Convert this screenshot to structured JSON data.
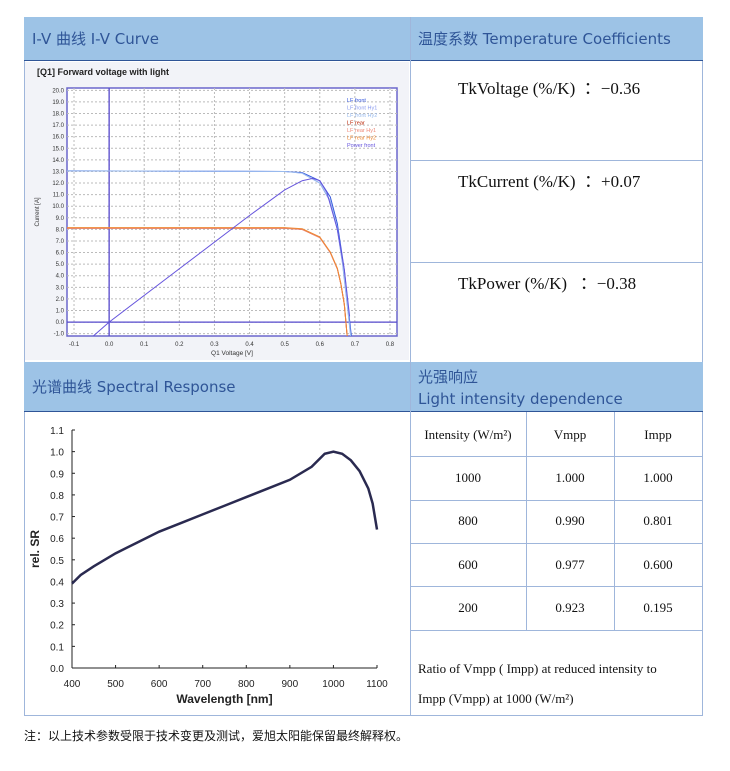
{
  "headers": {
    "iv": "I-V 曲线      I-V Curve",
    "temp": "温度系数 Temperature Coefficients",
    "spectral": "光谱曲线  Spectral Response",
    "light_cn": "光强响应",
    "light_en": "Light intensity dependence"
  },
  "temperature": [
    {
      "label": "TkVoltage (%/K)",
      "value": "：−0.36"
    },
    {
      "label": "TkCurrent (%/K)",
      "value": "：+0.07"
    },
    {
      "label": "TkPower (%/K)",
      "value": "：−0.38"
    }
  ],
  "light_table": {
    "columns": [
      "Intensity (W/m²)",
      "Vmpp",
      "Impp"
    ],
    "rows": [
      [
        "1000",
        "1.000",
        "1.000"
      ],
      [
        "800",
        "0.990",
        "0.801"
      ],
      [
        "600",
        "0.977",
        "0.600"
      ],
      [
        "200",
        "0.923",
        "0.195"
      ]
    ],
    "note_line1": "Ratio of Vmpp ( Impp) at reduced intensity to",
    "note_line2": "Impp (Vmpp) at 1000 (W/m²)"
  },
  "footnote": "注：以上技术参数受限于技术变更及测试，爱旭太阳能保留最终解释权。",
  "chart_data": [
    {
      "type": "line",
      "title": "[Q1] Forward voltage with light",
      "xlabel": "Q1 Voltage [V]",
      "ylabel": "Current [A]",
      "xlim": [
        -0.12,
        0.82
      ],
      "ylim": [
        -1.2,
        20.2
      ],
      "xticks": [
        "-0.1",
        "0.0",
        "0.1",
        "0.2",
        "0.3",
        "0.4",
        "0.5",
        "0.6",
        "0.7",
        "0.8"
      ],
      "yticks": [
        "20.0",
        "19.0",
        "18.0",
        "17.0",
        "16.0",
        "15.0",
        "14.0",
        "13.0",
        "12.0",
        "11.0",
        "10.0",
        "9.0",
        "8.0",
        "7.0",
        "6.0",
        "5.0",
        "4.0",
        "3.0",
        "2.0",
        "1.0",
        "0.0",
        "-1.0"
      ],
      "legend_placement": "top-right",
      "series": [
        {
          "name": "LF front",
          "color": "#3355dd",
          "x": [
            -0.12,
            0.5,
            0.55,
            0.6,
            0.63,
            0.65,
            0.67,
            0.68,
            0.69
          ],
          "y": [
            13.05,
            13.0,
            12.9,
            12.2,
            10.8,
            8.5,
            4.5,
            1.5,
            -1.2
          ]
        },
        {
          "name": "LF front Hy1",
          "color": "#8899ee",
          "x": [
            -0.12,
            0.5,
            0.55,
            0.6,
            0.63,
            0.65,
            0.665,
            0.68,
            0.688
          ],
          "y": [
            13.05,
            13.0,
            12.85,
            12.0,
            10.4,
            8.0,
            5.0,
            1.0,
            -1.2
          ]
        },
        {
          "name": "LF front Hy2",
          "color": "#99bbee",
          "x": [
            -0.12,
            0.5,
            0.55,
            0.6,
            0.63,
            0.65,
            0.665,
            0.68,
            0.688
          ],
          "y": [
            13.05,
            13.0,
            12.85,
            12.0,
            10.5,
            8.1,
            5.1,
            1.1,
            -1.2
          ]
        },
        {
          "name": "LF rear",
          "color": "#bb2200",
          "x": [
            -0.12,
            0.5,
            0.55,
            0.6,
            0.63,
            0.65,
            0.66,
            0.67,
            0.678
          ],
          "y": [
            8.1,
            8.1,
            8.0,
            7.3,
            6.0,
            4.6,
            3.3,
            1.5,
            -1.2
          ]
        },
        {
          "name": "LF rear Hy1",
          "color": "#ee8877",
          "x": [
            -0.12,
            0.5,
            0.55,
            0.6,
            0.63,
            0.65,
            0.66,
            0.67,
            0.678
          ],
          "y": [
            8.1,
            8.1,
            8.0,
            7.3,
            6.0,
            4.6,
            3.3,
            1.5,
            -1.2
          ]
        },
        {
          "name": "LF rear Hy2",
          "color": "#ee8833",
          "x": [
            -0.12,
            0.5,
            0.55,
            0.6,
            0.63,
            0.65,
            0.66,
            0.67,
            0.678
          ],
          "y": [
            8.15,
            8.15,
            8.05,
            7.35,
            6.05,
            4.65,
            3.35,
            1.55,
            -1.2
          ]
        },
        {
          "name": "Power front",
          "color": "#6655dd",
          "x": [
            -0.045,
            0.0,
            0.2,
            0.4,
            0.5,
            0.55,
            0.58,
            0.6,
            0.62,
            0.65,
            0.67,
            0.685
          ],
          "y": [
            -1.2,
            0.0,
            4.6,
            9.2,
            11.4,
            12.2,
            12.4,
            12.2,
            11.2,
            8.0,
            4.5,
            0.5
          ]
        }
      ]
    },
    {
      "type": "line",
      "title": "",
      "xlabel": "Wavelength [nm]",
      "ylabel": "rel. SR",
      "xlim": [
        400,
        1100
      ],
      "ylim": [
        0,
        1.1
      ],
      "xticks": [
        "400",
        "500",
        "600",
        "700",
        "800",
        "900",
        "1000",
        "1100"
      ],
      "yticks": [
        "1.1",
        "1.0",
        "0.9",
        "0.8",
        "0.7",
        "0.6",
        "0.5",
        "0.4",
        "0.3",
        "0.2",
        "0.1",
        "0.0"
      ],
      "series": [
        {
          "name": "rel. SR",
          "color": "#2a2a50",
          "x": [
            400,
            420,
            450,
            500,
            550,
            600,
            650,
            700,
            750,
            800,
            850,
            900,
            950,
            980,
            1000,
            1020,
            1040,
            1060,
            1080,
            1090,
            1100
          ],
          "y": [
            0.39,
            0.43,
            0.47,
            0.53,
            0.58,
            0.63,
            0.67,
            0.71,
            0.75,
            0.79,
            0.83,
            0.87,
            0.93,
            0.99,
            1.0,
            0.99,
            0.96,
            0.91,
            0.83,
            0.76,
            0.64
          ]
        }
      ]
    }
  ]
}
